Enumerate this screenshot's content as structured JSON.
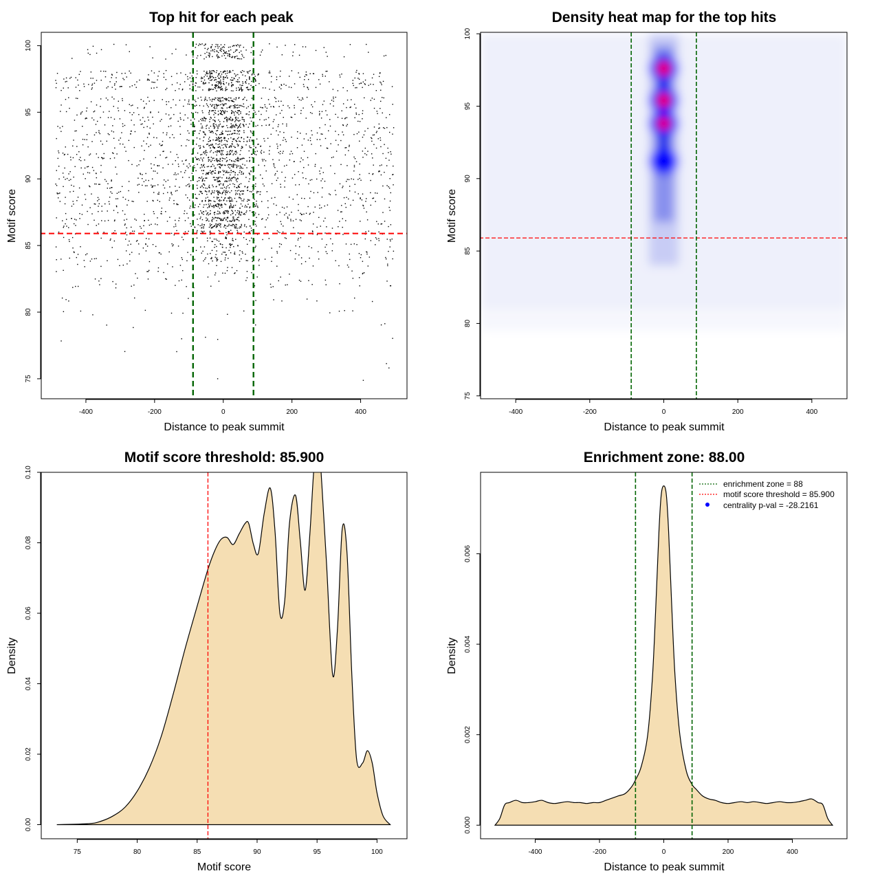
{
  "colors": {
    "points": "#000000",
    "threshold_line": "#ff0000",
    "zone_line": "#006400",
    "density_fill": "#f5deb3",
    "heat_low": "#ffffff",
    "heat_mid": "#0000ff",
    "heat_high": "#ff0000",
    "legend_marker": "#0000ff"
  },
  "chart_data": [
    {
      "id": "scatter",
      "type": "scatter",
      "title": "Top hit for each peak",
      "xlabel": "Distance to peak summit",
      "ylabel": "Motif score",
      "xlim": [
        -530,
        535
      ],
      "ylim": [
        73.5,
        101
      ],
      "xticks": [
        -400,
        -200,
        0,
        200,
        400
      ],
      "yticks": [
        75,
        80,
        85,
        90,
        95,
        100
      ],
      "grid": false,
      "point_density": {
        "central_peak_x": 0,
        "central_spread_x": 45,
        "score_levels": [
          100,
          99.6,
          99.2,
          98,
          97.6,
          97.2,
          96.8,
          96,
          95.5,
          95,
          94.5,
          94,
          93.5,
          93,
          92.5,
          92,
          91.5,
          91,
          90.5,
          90,
          89.5,
          89,
          88.5,
          88,
          87.5,
          87,
          86.5,
          86,
          85.5,
          85,
          84.5,
          84,
          83.5,
          83,
          82.5,
          82,
          81,
          80,
          79,
          78,
          77,
          76,
          75
        ],
        "x_range": [
          -490,
          495
        ]
      },
      "hlines": [
        {
          "y": 85.9,
          "color": "threshold_line"
        }
      ],
      "vlines": [
        {
          "x": -88,
          "color": "zone_line"
        },
        {
          "x": 88,
          "color": "zone_line"
        }
      ]
    },
    {
      "id": "heatmap",
      "type": "heatmap",
      "title": "Density heat map for the top hits",
      "xlabel": "Distance to peak summit",
      "ylabel": "Motif score",
      "xlim": [
        -495,
        495
      ],
      "ylim": [
        74.8,
        100.1
      ],
      "xticks": [
        -400,
        -200,
        0,
        200,
        400
      ],
      "yticks": [
        75,
        80,
        85,
        90,
        95,
        100
      ],
      "hot_spots": [
        {
          "x": 0,
          "y": 97.6,
          "level": 1.0
        },
        {
          "x": 0,
          "y": 95.4,
          "level": 1.0
        },
        {
          "x": 0,
          "y": 93.8,
          "level": 0.85
        },
        {
          "x": 0,
          "y": 91.2,
          "level": 0.6
        }
      ],
      "hlines": [
        {
          "y": 85.9,
          "color": "threshold_line"
        }
      ],
      "vlines": [
        {
          "x": -88,
          "color": "zone_line"
        },
        {
          "x": 88,
          "color": "zone_line"
        }
      ]
    },
    {
      "id": "score-density",
      "type": "area",
      "title": "Motif score threshold: 85.900",
      "xlabel": "Motif score",
      "ylabel": "Density",
      "xlim": [
        72,
        102.5
      ],
      "ylim": [
        -0.004,
        0.1
      ],
      "xticks": [
        75,
        80,
        85,
        90,
        95,
        100
      ],
      "yticks": [
        0.0,
        0.02,
        0.04,
        0.06,
        0.08,
        0.1
      ],
      "ytick_labels": [
        "0.00",
        "0.02",
        "0.04",
        "0.06",
        "0.08",
        "0.10"
      ],
      "x": [
        73.3,
        76,
        77,
        78,
        79,
        80,
        81,
        82,
        83,
        84,
        85,
        85.9,
        86.5,
        87,
        87.5,
        88,
        88.5,
        89,
        89.3,
        89.7,
        90.1,
        90.6,
        91.1,
        91.5,
        91.9,
        92.3,
        92.7,
        93.2,
        93.6,
        94,
        94.4,
        94.8,
        95.2,
        95.4,
        95.8,
        96.3,
        96.7,
        97.1,
        97.5,
        97.9,
        98.3,
        98.8,
        99.2,
        99.6,
        100,
        100.5,
        101.1
      ],
      "y": [
        0.0,
        0.0003,
        0.001,
        0.0025,
        0.005,
        0.0095,
        0.016,
        0.025,
        0.037,
        0.05,
        0.062,
        0.0725,
        0.078,
        0.081,
        0.0815,
        0.0795,
        0.0825,
        0.0855,
        0.0855,
        0.0795,
        0.077,
        0.0885,
        0.0955,
        0.083,
        0.06,
        0.0635,
        0.0855,
        0.0935,
        0.0805,
        0.0665,
        0.0825,
        0.1035,
        0.1045,
        0.0965,
        0.0735,
        0.0425,
        0.0555,
        0.084,
        0.077,
        0.0425,
        0.0185,
        0.0175,
        0.021,
        0.0175,
        0.009,
        0.0025,
        0.0
      ]
    },
    {
      "id": "distance-density",
      "type": "area",
      "title": "Enrichment zone: 88.00",
      "xlabel": "Distance to peak summit",
      "ylabel": "Density",
      "xlim": [
        -570,
        570
      ],
      "ylim": [
        -0.0003,
        0.0078
      ],
      "xticks": [
        -400,
        -200,
        0,
        200,
        400
      ],
      "yticks": [
        0.0,
        0.002,
        0.004,
        0.006
      ],
      "ytick_labels": [
        "0.000",
        "0.002",
        "0.004",
        "0.006"
      ],
      "x": [
        -525,
        -510,
        -495,
        -480,
        -460,
        -440,
        -420,
        -400,
        -380,
        -360,
        -340,
        -320,
        -300,
        -280,
        -260,
        -240,
        -220,
        -200,
        -180,
        -160,
        -140,
        -120,
        -100,
        -88,
        -70,
        -50,
        -35,
        -25,
        -15,
        -8,
        0,
        8,
        15,
        25,
        35,
        50,
        70,
        88,
        100,
        120,
        140,
        160,
        180,
        200,
        220,
        240,
        260,
        280,
        300,
        320,
        340,
        360,
        380,
        400,
        420,
        440,
        460,
        480,
        495,
        510,
        525
      ],
      "y": [
        0.0,
        0.00015,
        0.00045,
        0.0005,
        0.00055,
        0.0005,
        0.0005,
        0.00052,
        0.00055,
        0.0005,
        0.00048,
        0.0005,
        0.00052,
        0.0005,
        0.0005,
        0.00048,
        0.0005,
        0.0005,
        0.00055,
        0.0006,
        0.00065,
        0.0007,
        0.00085,
        0.001,
        0.0013,
        0.002,
        0.0033,
        0.0048,
        0.0065,
        0.0073,
        0.0075,
        0.0073,
        0.0065,
        0.0048,
        0.0033,
        0.002,
        0.0012,
        0.0009,
        0.0008,
        0.00065,
        0.00058,
        0.00055,
        0.0005,
        0.00048,
        0.0005,
        0.00052,
        0.0005,
        0.00052,
        0.0005,
        0.00048,
        0.0005,
        0.00052,
        0.0005,
        0.0005,
        0.00052,
        0.00055,
        0.00058,
        0.0005,
        0.00045,
        0.00015,
        0.0
      ],
      "vlines": [
        {
          "x": -88,
          "color": "zone_line"
        },
        {
          "x": 88,
          "color": "zone_line"
        }
      ],
      "legend": {
        "position": "top-right",
        "entries": [
          {
            "label": "enrichment zone = 88",
            "style": "dotted-line",
            "color": "zone_line"
          },
          {
            "label": "motif score threshold = 85.900",
            "style": "dotted-line",
            "color": "threshold_line"
          },
          {
            "label": "centrality p-val = -28.2161",
            "style": "point",
            "color": "legend_marker"
          }
        ]
      }
    }
  ]
}
